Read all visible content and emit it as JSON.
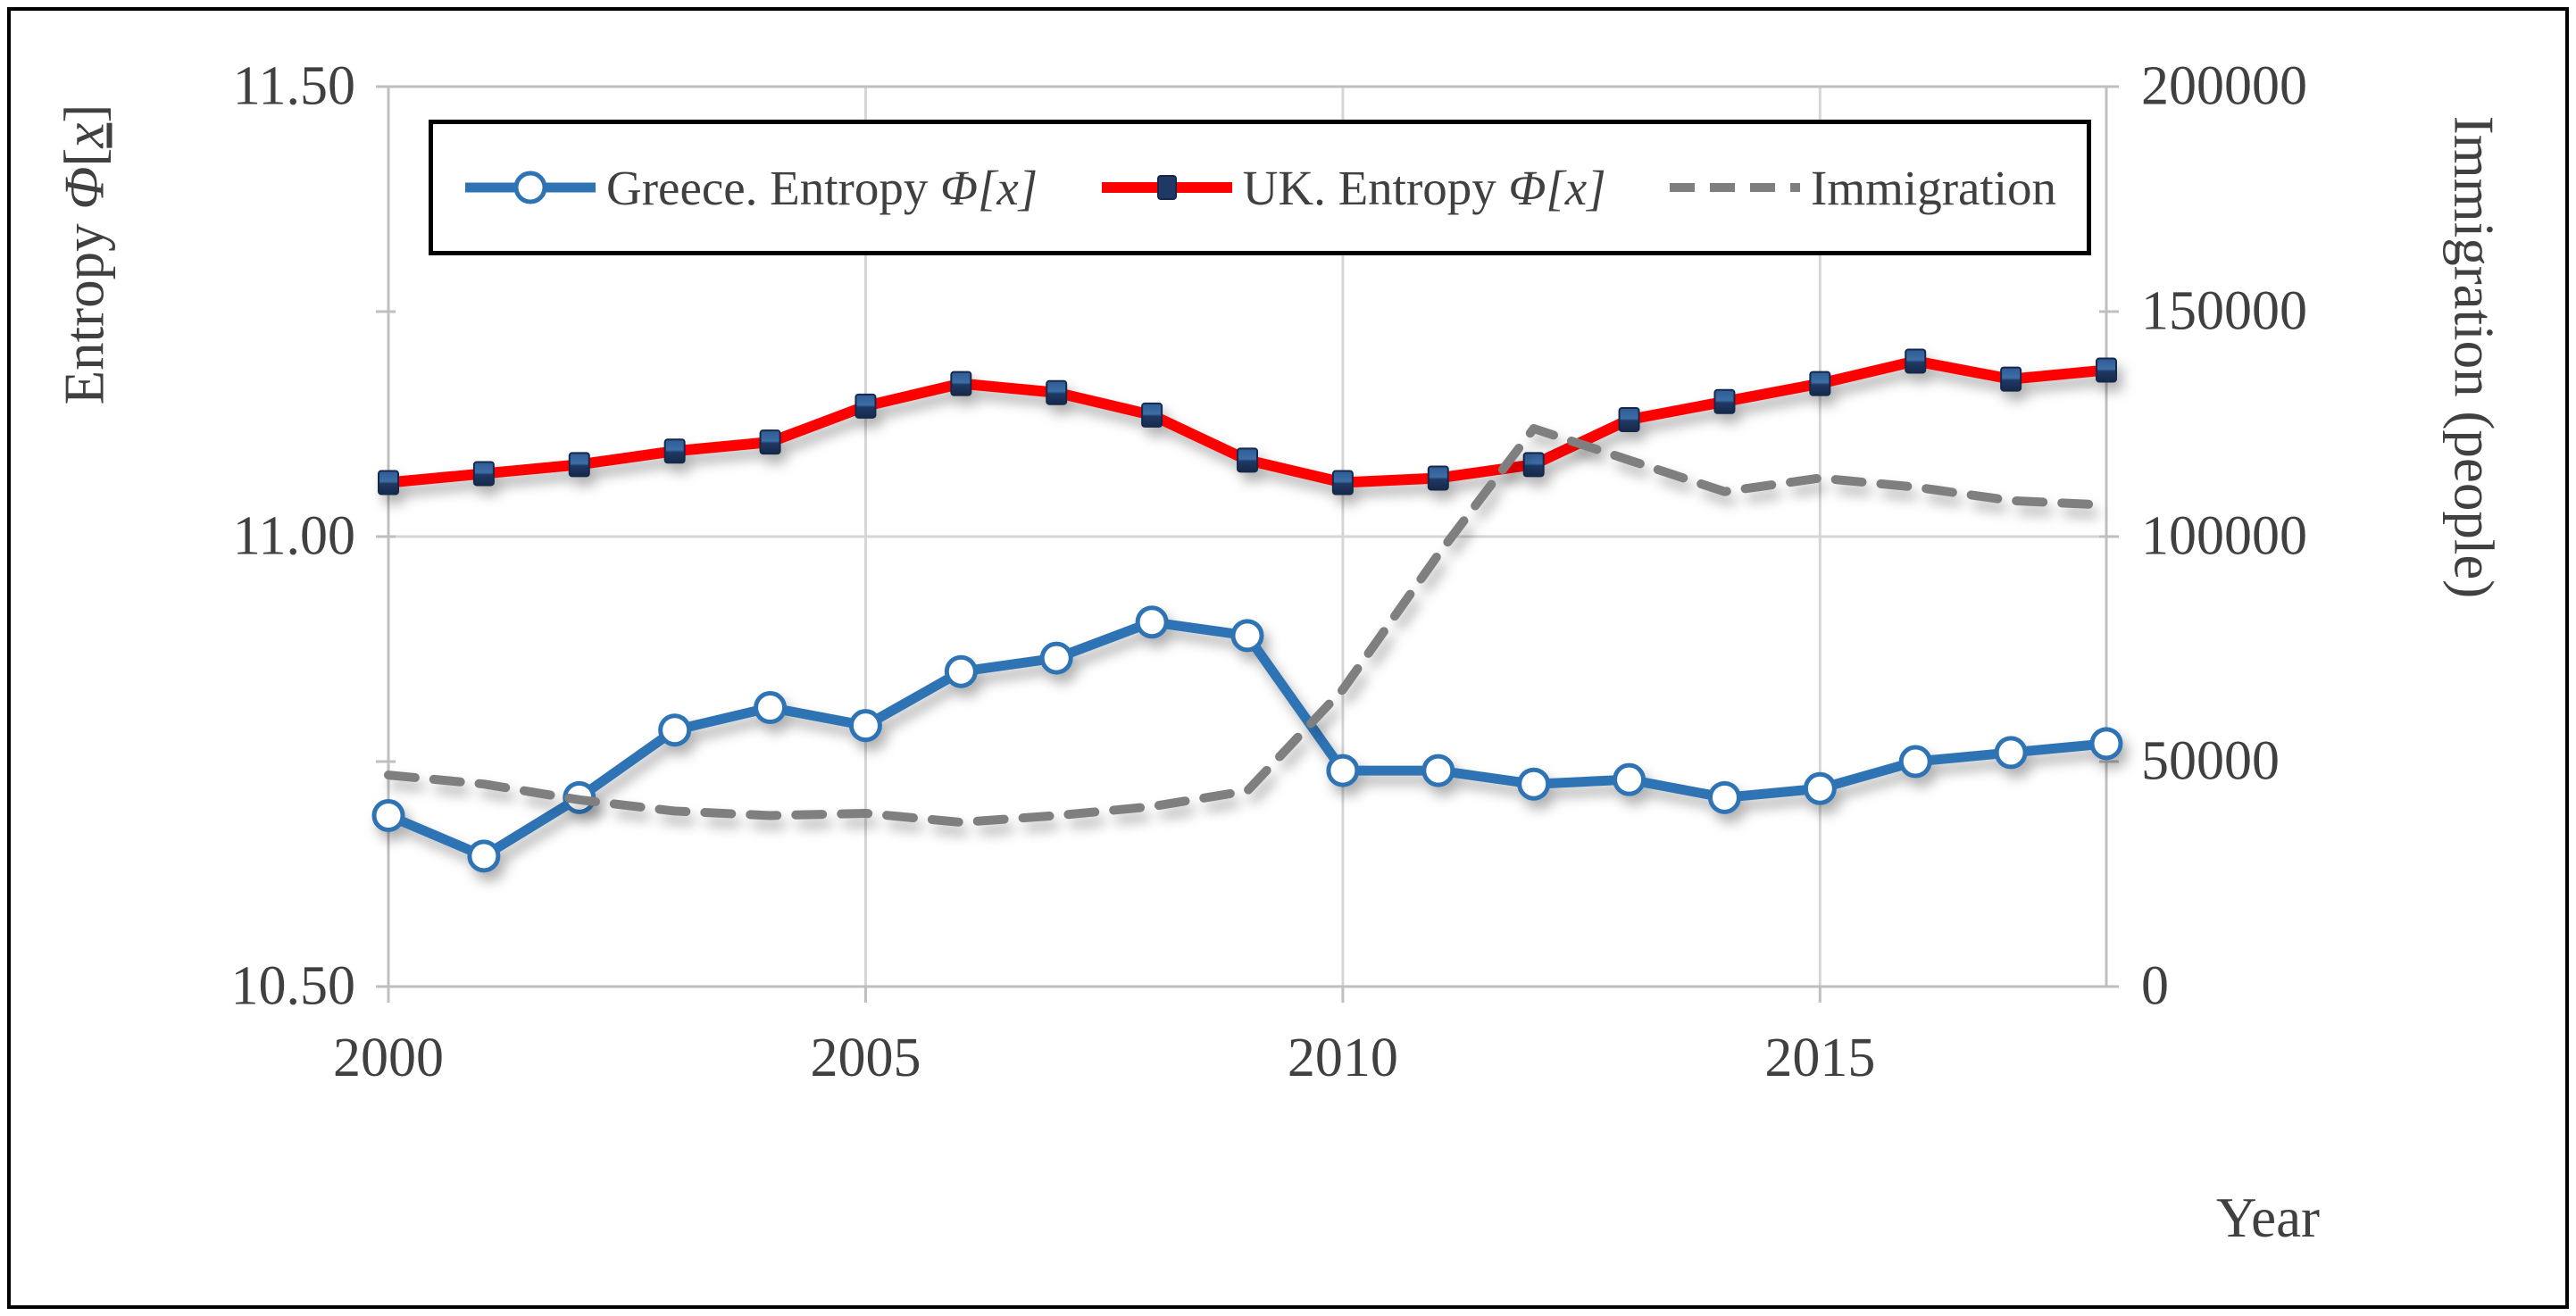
{
  "figure": {
    "x_axis_title": "Year",
    "left_axis_title": {
      "prefix": "Entropy ",
      "phi": "Φ",
      "bracket_open": "[",
      "x": "x",
      "bracket_close": "]"
    },
    "right_axis_title": "Immigration (people)"
  },
  "legend": {
    "items": [
      {
        "id": "greece",
        "label_main": "Greece. Entropy ",
        "label_symbol": "Φ[x]"
      },
      {
        "id": "uk",
        "label_main": "UK. Entropy ",
        "label_symbol": "Φ[x]"
      },
      {
        "id": "immigration",
        "label_main": "Immigration",
        "label_symbol": ""
      }
    ]
  },
  "chart_data": {
    "type": "line",
    "x": [
      2000,
      2001,
      2002,
      2003,
      2004,
      2005,
      2006,
      2007,
      2008,
      2009,
      2010,
      2011,
      2012,
      2013,
      2014,
      2015,
      2016,
      2017,
      2018
    ],
    "x_range": [
      2000,
      2018
    ],
    "x_tick_labels": [
      "2000",
      "2005",
      "2010",
      "2015"
    ],
    "x_tick_values": [
      2000,
      2005,
      2010,
      2015
    ],
    "x_gridline_values": [
      2005,
      2010,
      2015
    ],
    "y_left": {
      "min": 10.5,
      "max": 11.5,
      "tick_labels": [
        "11.50",
        "11.00",
        "10.50"
      ],
      "tick_values": [
        11.5,
        11.0,
        10.5
      ],
      "minor_tick_values": [
        11.25,
        10.75
      ],
      "gridline_values": [
        11.0
      ]
    },
    "y_right": {
      "min": 0,
      "max": 200000,
      "tick_labels": [
        "200000",
        "150000",
        "100000",
        "50000",
        "0"
      ],
      "tick_values": [
        200000,
        150000,
        100000,
        50000,
        0
      ]
    },
    "series": [
      {
        "name": "Greece. Entropy Φ[x]",
        "axis": "left",
        "color": "#2E74B5",
        "marker": "circle",
        "dash": "none",
        "values": [
          10.69,
          10.645,
          10.71,
          10.785,
          10.81,
          10.79,
          10.85,
          10.865,
          10.905,
          10.89,
          10.74,
          10.74,
          10.725,
          10.73,
          10.71,
          10.72,
          10.75,
          10.76,
          10.77
        ]
      },
      {
        "name": "UK. Entropy Φ[x]",
        "axis": "left",
        "color": "#FF0000",
        "marker": "square",
        "dash": "none",
        "values": [
          11.06,
          11.07,
          11.08,
          11.095,
          11.105,
          11.145,
          11.17,
          11.16,
          11.135,
          11.085,
          11.06,
          11.065,
          11.08,
          11.13,
          11.15,
          11.17,
          11.195,
          11.175,
          11.185
        ]
      },
      {
        "name": "Immigration",
        "axis": "right",
        "color": "#7F7F7F",
        "marker": "none",
        "dash": "dashed",
        "values": [
          47000,
          45000,
          41500,
          39000,
          38000,
          38500,
          36500,
          38000,
          40000,
          43500,
          66000,
          96000,
          124000,
          117000,
          110000,
          113000,
          111000,
          108000,
          107000
        ]
      }
    ],
    "grid": true,
    "legend_position": "top-center"
  },
  "colors": {
    "gridline": "#D6D6D6",
    "plot_border": "#BFBFBF",
    "tick": "#BFBFBF",
    "text": "#404040",
    "marker_square_fill": "#1F3864",
    "marker_square_light": "#2E5B97"
  }
}
